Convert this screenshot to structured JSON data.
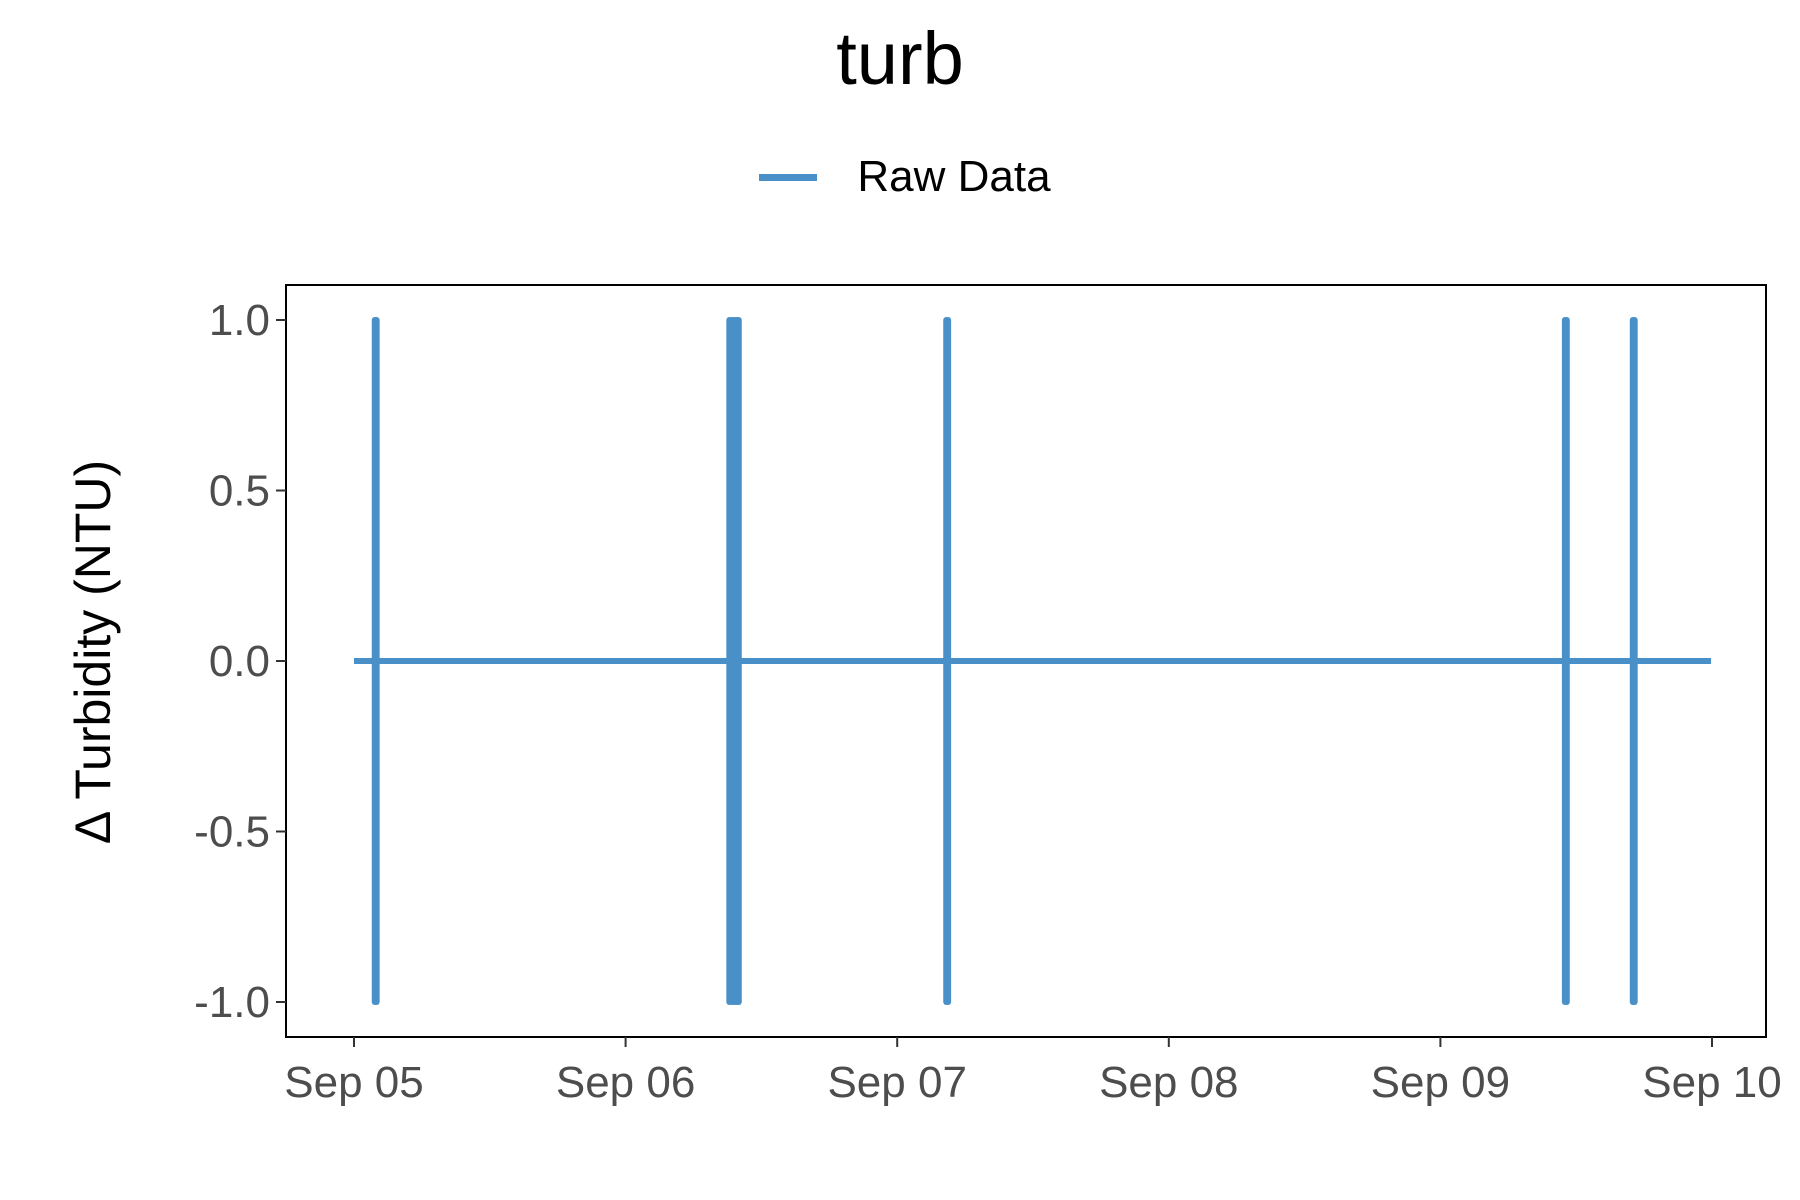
{
  "chart_data": {
    "type": "line",
    "title": "turb",
    "xlabel": "",
    "ylabel": "Δ Turbidity (NTU)",
    "ylim": [
      -1.0,
      1.0
    ],
    "xlim": [
      "2022-09-05",
      "2022-09-10"
    ],
    "y_ticks": [
      "-1.0",
      "-0.5",
      "0.0",
      "0.5",
      "1.0"
    ],
    "x_ticks": [
      "Sep 05",
      "Sep 06",
      "Sep 07",
      "Sep 08",
      "Sep 09",
      "Sep 10"
    ],
    "grid": false,
    "legend_position": "top-center",
    "series": [
      {
        "name": "Raw Data",
        "color": "#4a90c8",
        "start": "2022-09-05T00:00",
        "end": "2022-09-09T23:55",
        "baseline": 0.0,
        "spikes": [
          {
            "time": "2022-09-05T01:50",
            "min": -1.0,
            "max": 1.0
          },
          {
            "time": "2022-09-05T02:00",
            "min": -1.0,
            "max": 1.0
          },
          {
            "time": "2022-09-06T09:10",
            "min": -1.0,
            "max": 1.0
          },
          {
            "time": "2022-09-06T09:20",
            "min": -1.0,
            "max": 1.0
          },
          {
            "time": "2022-09-06T09:30",
            "min": -1.0,
            "max": 1.0
          },
          {
            "time": "2022-09-06T09:40",
            "min": -1.0,
            "max": 1.0
          },
          {
            "time": "2022-09-06T09:50",
            "min": -1.0,
            "max": 1.0
          },
          {
            "time": "2022-09-06T10:00",
            "min": -1.0,
            "max": 1.0
          },
          {
            "time": "2022-09-07T04:20",
            "min": -1.0,
            "max": 1.0
          },
          {
            "time": "2022-09-07T04:30",
            "min": -1.0,
            "max": 1.0
          },
          {
            "time": "2022-09-09T11:00",
            "min": -1.0,
            "max": 1.0
          },
          {
            "time": "2022-09-09T11:10",
            "min": -1.0,
            "max": 1.0
          },
          {
            "time": "2022-09-09T17:00",
            "min": -1.0,
            "max": 1.0
          },
          {
            "time": "2022-09-09T17:10",
            "min": -1.0,
            "max": 1.0
          }
        ]
      }
    ]
  }
}
